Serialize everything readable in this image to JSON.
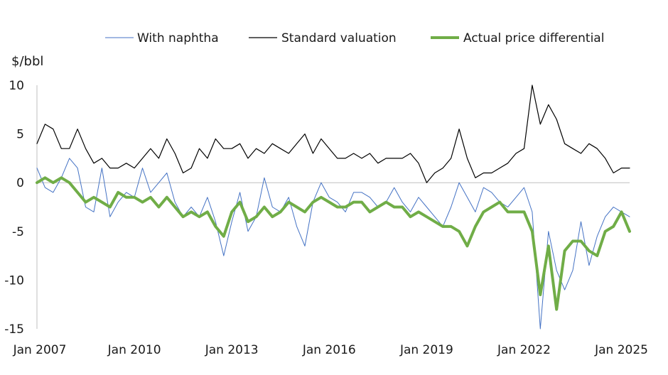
{
  "chart_data": {
    "type": "line",
    "ylabel": "$/bbl",
    "ylim": [
      -15,
      10
    ],
    "yticks": [
      10,
      5,
      0,
      -5,
      -10,
      -15
    ],
    "xlim": [
      "2007-01",
      "2025-04"
    ],
    "xticks": [
      "Jan 2007",
      "Jan 2010",
      "Jan 2013",
      "Jan 2016",
      "Jan 2019",
      "Jan 2022",
      "Jan 2025"
    ],
    "grid": false,
    "legend_position": "top",
    "series": [
      {
        "name": "With naphtha",
        "color": "#4472c4",
        "points": [
          [
            "2007-01",
            1.5
          ],
          [
            "2007-04",
            -0.5
          ],
          [
            "2007-07",
            -1.0
          ],
          [
            "2007-10",
            0.5
          ],
          [
            "2008-01",
            2.5
          ],
          [
            "2008-04",
            1.5
          ],
          [
            "2008-07",
            -2.5
          ],
          [
            "2008-10",
            -3.0
          ],
          [
            "2009-01",
            1.5
          ],
          [
            "2009-04",
            -3.5
          ],
          [
            "2009-07",
            -2.0
          ],
          [
            "2009-10",
            -1.0
          ],
          [
            "2010-01",
            -1.5
          ],
          [
            "2010-04",
            1.5
          ],
          [
            "2010-07",
            -1.0
          ],
          [
            "2010-10",
            0.0
          ],
          [
            "2011-01",
            1.0
          ],
          [
            "2011-04",
            -2.0
          ],
          [
            "2011-07",
            -3.5
          ],
          [
            "2011-10",
            -2.5
          ],
          [
            "2012-01",
            -3.5
          ],
          [
            "2012-04",
            -1.5
          ],
          [
            "2012-07",
            -4.0
          ],
          [
            "2012-10",
            -7.5
          ],
          [
            "2013-01",
            -4.0
          ],
          [
            "2013-04",
            -1.0
          ],
          [
            "2013-07",
            -5.0
          ],
          [
            "2013-10",
            -3.5
          ],
          [
            "2014-01",
            0.5
          ],
          [
            "2014-04",
            -2.5
          ],
          [
            "2014-07",
            -3.0
          ],
          [
            "2014-10",
            -1.5
          ],
          [
            "2015-01",
            -4.5
          ],
          [
            "2015-04",
            -6.5
          ],
          [
            "2015-07",
            -2.0
          ],
          [
            "2015-10",
            0.0
          ],
          [
            "2016-01",
            -1.5
          ],
          [
            "2016-04",
            -2.0
          ],
          [
            "2016-07",
            -3.0
          ],
          [
            "2016-10",
            -1.0
          ],
          [
            "2017-01",
            -1.0
          ],
          [
            "2017-04",
            -1.5
          ],
          [
            "2017-07",
            -2.5
          ],
          [
            "2017-10",
            -2.0
          ],
          [
            "2018-01",
            -0.5
          ],
          [
            "2018-04",
            -2.0
          ],
          [
            "2018-07",
            -3.0
          ],
          [
            "2018-10",
            -1.5
          ],
          [
            "2019-01",
            -2.5
          ],
          [
            "2019-04",
            -3.5
          ],
          [
            "2019-07",
            -4.5
          ],
          [
            "2019-10",
            -2.5
          ],
          [
            "2020-01",
            0.0
          ],
          [
            "2020-04",
            -1.5
          ],
          [
            "2020-07",
            -3.0
          ],
          [
            "2020-10",
            -0.5
          ],
          [
            "2021-01",
            -1.0
          ],
          [
            "2021-04",
            -2.0
          ],
          [
            "2021-07",
            -2.5
          ],
          [
            "2021-10",
            -1.5
          ],
          [
            "2022-01",
            -0.5
          ],
          [
            "2022-04",
            -3.0
          ],
          [
            "2022-07",
            -15.0
          ],
          [
            "2022-10",
            -5.0
          ],
          [
            "2023-01",
            -9.0
          ],
          [
            "2023-04",
            -11.0
          ],
          [
            "2023-07",
            -9.0
          ],
          [
            "2023-10",
            -4.0
          ],
          [
            "2024-01",
            -8.5
          ],
          [
            "2024-04",
            -5.5
          ],
          [
            "2024-07",
            -3.5
          ],
          [
            "2024-10",
            -2.5
          ],
          [
            "2025-01",
            -3.0
          ],
          [
            "2025-04",
            -3.5
          ]
        ]
      },
      {
        "name": "Standard valuation",
        "color": "#000000",
        "points": [
          [
            "2007-01",
            4.0
          ],
          [
            "2007-04",
            6.0
          ],
          [
            "2007-07",
            5.5
          ],
          [
            "2007-10",
            3.5
          ],
          [
            "2008-01",
            3.5
          ],
          [
            "2008-04",
            5.5
          ],
          [
            "2008-07",
            3.5
          ],
          [
            "2008-10",
            2.0
          ],
          [
            "2009-01",
            2.5
          ],
          [
            "2009-04",
            1.5
          ],
          [
            "2009-07",
            1.5
          ],
          [
            "2009-10",
            2.0
          ],
          [
            "2010-01",
            1.5
          ],
          [
            "2010-04",
            2.5
          ],
          [
            "2010-07",
            3.5
          ],
          [
            "2010-10",
            2.5
          ],
          [
            "2011-01",
            4.5
          ],
          [
            "2011-04",
            3.0
          ],
          [
            "2011-07",
            1.0
          ],
          [
            "2011-10",
            1.5
          ],
          [
            "2012-01",
            3.5
          ],
          [
            "2012-04",
            2.5
          ],
          [
            "2012-07",
            4.5
          ],
          [
            "2012-10",
            3.5
          ],
          [
            "2013-01",
            3.5
          ],
          [
            "2013-04",
            4.0
          ],
          [
            "2013-07",
            2.5
          ],
          [
            "2013-10",
            3.5
          ],
          [
            "2014-01",
            3.0
          ],
          [
            "2014-04",
            4.0
          ],
          [
            "2014-07",
            3.5
          ],
          [
            "2014-10",
            3.0
          ],
          [
            "2015-01",
            4.0
          ],
          [
            "2015-04",
            5.0
          ],
          [
            "2015-07",
            3.0
          ],
          [
            "2015-10",
            4.5
          ],
          [
            "2016-01",
            3.5
          ],
          [
            "2016-04",
            2.5
          ],
          [
            "2016-07",
            2.5
          ],
          [
            "2016-10",
            3.0
          ],
          [
            "2017-01",
            2.5
          ],
          [
            "2017-04",
            3.0
          ],
          [
            "2017-07",
            2.0
          ],
          [
            "2017-10",
            2.5
          ],
          [
            "2018-01",
            2.5
          ],
          [
            "2018-04",
            2.5
          ],
          [
            "2018-07",
            3.0
          ],
          [
            "2018-10",
            2.0
          ],
          [
            "2019-01",
            0.0
          ],
          [
            "2019-04",
            1.0
          ],
          [
            "2019-07",
            1.5
          ],
          [
            "2019-10",
            2.5
          ],
          [
            "2020-01",
            5.5
          ],
          [
            "2020-04",
            2.5
          ],
          [
            "2020-07",
            0.5
          ],
          [
            "2020-10",
            1.0
          ],
          [
            "2021-01",
            1.0
          ],
          [
            "2021-04",
            1.5
          ],
          [
            "2021-07",
            2.0
          ],
          [
            "2021-10",
            3.0
          ],
          [
            "2022-01",
            3.5
          ],
          [
            "2022-04",
            10.0
          ],
          [
            "2022-07",
            6.0
          ],
          [
            "2022-10",
            8.0
          ],
          [
            "2023-01",
            6.5
          ],
          [
            "2023-04",
            4.0
          ],
          [
            "2023-07",
            3.5
          ],
          [
            "2023-10",
            3.0
          ],
          [
            "2024-01",
            4.0
          ],
          [
            "2024-04",
            3.5
          ],
          [
            "2024-07",
            2.5
          ],
          [
            "2024-10",
            1.0
          ],
          [
            "2025-01",
            1.5
          ],
          [
            "2025-04",
            1.5
          ]
        ]
      },
      {
        "name": "Actual price differential",
        "color": "#70ad47",
        "points": [
          [
            "2007-01",
            0.0
          ],
          [
            "2007-04",
            0.5
          ],
          [
            "2007-07",
            0.0
          ],
          [
            "2007-10",
            0.5
          ],
          [
            "2008-01",
            0.0
          ],
          [
            "2008-04",
            -1.0
          ],
          [
            "2008-07",
            -2.0
          ],
          [
            "2008-10",
            -1.5
          ],
          [
            "2009-01",
            -2.0
          ],
          [
            "2009-04",
            -2.5
          ],
          [
            "2009-07",
            -1.0
          ],
          [
            "2009-10",
            -1.5
          ],
          [
            "2010-01",
            -1.5
          ],
          [
            "2010-04",
            -2.0
          ],
          [
            "2010-07",
            -1.5
          ],
          [
            "2010-10",
            -2.5
          ],
          [
            "2011-01",
            -1.5
          ],
          [
            "2011-04",
            -2.5
          ],
          [
            "2011-07",
            -3.5
          ],
          [
            "2011-10",
            -3.0
          ],
          [
            "2012-01",
            -3.5
          ],
          [
            "2012-04",
            -3.0
          ],
          [
            "2012-07",
            -4.5
          ],
          [
            "2012-10",
            -5.5
          ],
          [
            "2013-01",
            -3.0
          ],
          [
            "2013-04",
            -2.0
          ],
          [
            "2013-07",
            -4.0
          ],
          [
            "2013-10",
            -3.5
          ],
          [
            "2014-01",
            -2.5
          ],
          [
            "2014-04",
            -3.5
          ],
          [
            "2014-07",
            -3.0
          ],
          [
            "2014-10",
            -2.0
          ],
          [
            "2015-01",
            -2.5
          ],
          [
            "2015-04",
            -3.0
          ],
          [
            "2015-07",
            -2.0
          ],
          [
            "2015-10",
            -1.5
          ],
          [
            "2016-01",
            -2.0
          ],
          [
            "2016-04",
            -2.5
          ],
          [
            "2016-07",
            -2.5
          ],
          [
            "2016-10",
            -2.0
          ],
          [
            "2017-01",
            -2.0
          ],
          [
            "2017-04",
            -3.0
          ],
          [
            "2017-07",
            -2.5
          ],
          [
            "2017-10",
            -2.0
          ],
          [
            "2018-01",
            -2.5
          ],
          [
            "2018-04",
            -2.5
          ],
          [
            "2018-07",
            -3.5
          ],
          [
            "2018-10",
            -3.0
          ],
          [
            "2019-01",
            -3.5
          ],
          [
            "2019-04",
            -4.0
          ],
          [
            "2019-07",
            -4.5
          ],
          [
            "2019-10",
            -4.5
          ],
          [
            "2020-01",
            -5.0
          ],
          [
            "2020-04",
            -6.5
          ],
          [
            "2020-07",
            -4.5
          ],
          [
            "2020-10",
            -3.0
          ],
          [
            "2021-01",
            -2.5
          ],
          [
            "2021-04",
            -2.0
          ],
          [
            "2021-07",
            -3.0
          ],
          [
            "2021-10",
            -3.0
          ],
          [
            "2022-01",
            -3.0
          ],
          [
            "2022-04",
            -5.0
          ],
          [
            "2022-07",
            -11.5
          ],
          [
            "2022-10",
            -6.5
          ],
          [
            "2023-01",
            -13.0
          ],
          [
            "2023-04",
            -7.0
          ],
          [
            "2023-07",
            -6.0
          ],
          [
            "2023-10",
            -6.0
          ],
          [
            "2024-01",
            -7.0
          ],
          [
            "2024-04",
            -7.5
          ],
          [
            "2024-07",
            -5.0
          ],
          [
            "2024-10",
            -4.5
          ],
          [
            "2025-01",
            -3.0
          ],
          [
            "2025-04",
            -5.0
          ]
        ]
      }
    ]
  }
}
